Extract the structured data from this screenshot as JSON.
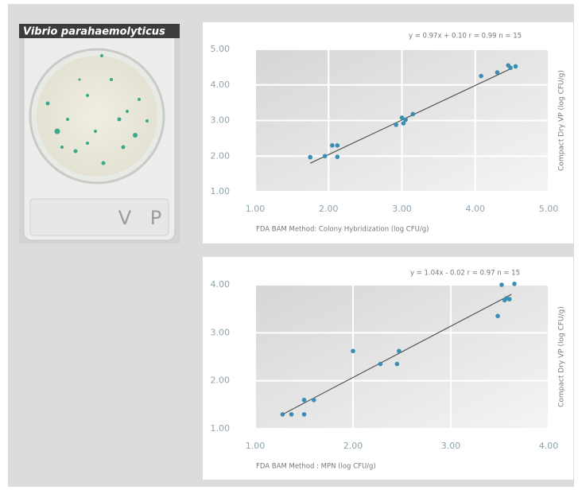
{
  "photo": {
    "label": "Vibrio parahaemolyticus",
    "plate_text": "V P"
  },
  "chart_data": [
    {
      "type": "scatter",
      "annotation": "y = 0.97x + 0.10   r = 0.99   n = 15",
      "x_label": "FDA BAM Method: Colony Hybridization (log CFU/g)",
      "y_label": "Compact Dry VP (log CFU/g)",
      "xlim": [
        1,
        5
      ],
      "ylim": [
        1,
        5
      ],
      "xticks": [
        {
          "value": 1,
          "label": "1.00"
        },
        {
          "value": 2,
          "label": "2.00"
        },
        {
          "value": 3,
          "label": "3.00"
        },
        {
          "value": 4,
          "label": "4.00"
        },
        {
          "value": 5,
          "label": "5.00"
        }
      ],
      "yticks": [
        {
          "value": 1,
          "label": "1.00"
        },
        {
          "value": 2,
          "label": "2.00"
        },
        {
          "value": 3,
          "label": "3.00"
        },
        {
          "value": 4,
          "label": "4.00"
        },
        {
          "value": 5,
          "label": "5.00"
        }
      ],
      "color": "#3b8db3",
      "grid": true,
      "x": [
        1.75,
        1.95,
        2.05,
        2.12,
        2.12,
        2.92,
        3.0,
        3.02,
        3.05,
        3.15,
        4.08,
        4.3,
        4.45,
        4.48,
        4.55
      ],
      "values": [
        1.97,
        2.0,
        2.3,
        2.3,
        1.98,
        2.88,
        3.08,
        2.92,
        3.02,
        3.18,
        4.25,
        4.35,
        4.55,
        4.48,
        4.52
      ],
      "trendline": {
        "x": [
          1.75,
          4.5
        ],
        "y": [
          1.8,
          4.47
        ],
        "color": "#555555"
      }
    },
    {
      "type": "scatter",
      "annotation": "y = 1.04x - 0.02   r = 0.97   n = 15",
      "x_label": "FDA BAM Method : MPN (log CFU/g)",
      "y_label": "Compact Dry VP (log CFU/g)",
      "xlim": [
        1,
        4
      ],
      "ylim": [
        1,
        4
      ],
      "xticks": [
        {
          "value": 1,
          "label": "1.00"
        },
        {
          "value": 2,
          "label": "2.00"
        },
        {
          "value": 3,
          "label": "3.00"
        },
        {
          "value": 4,
          "label": "4.00"
        }
      ],
      "yticks": [
        {
          "value": 1,
          "label": "1.00"
        },
        {
          "value": 2,
          "label": "2.00"
        },
        {
          "value": 3,
          "label": "3.00"
        },
        {
          "value": 4,
          "label": "4.00"
        }
      ],
      "color": "#3b8db3",
      "grid": true,
      "x": [
        1.28,
        1.37,
        1.5,
        1.5,
        1.6,
        2.0,
        2.28,
        2.45,
        2.47,
        3.48,
        3.52,
        3.55,
        3.57,
        3.6,
        3.65
      ],
      "values": [
        1.3,
        1.3,
        1.3,
        1.6,
        1.6,
        2.62,
        2.35,
        2.35,
        2.62,
        3.35,
        4.0,
        3.68,
        3.72,
        3.7,
        4.02
      ],
      "trendline": {
        "x": [
          1.28,
          3.62
        ],
        "y": [
          1.3,
          3.8
        ],
        "color": "#555555"
      }
    }
  ]
}
